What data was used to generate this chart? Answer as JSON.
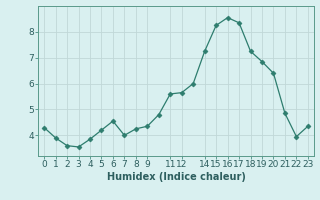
{
  "x": [
    0,
    1,
    2,
    3,
    4,
    5,
    6,
    7,
    8,
    9,
    10,
    11,
    12,
    13,
    14,
    15,
    16,
    17,
    18,
    19,
    20,
    21,
    22,
    23
  ],
  "y": [
    4.3,
    3.9,
    3.6,
    3.55,
    3.85,
    4.2,
    4.55,
    4.0,
    4.25,
    4.35,
    4.8,
    5.6,
    5.65,
    6.0,
    7.25,
    8.25,
    8.55,
    8.35,
    7.25,
    6.85,
    6.4,
    4.85,
    3.95,
    4.35
  ],
  "line_color": "#2e7d6e",
  "marker": "D",
  "marker_size": 2.5,
  "bg_color": "#d9f0f0",
  "grid_color": "#c0d8d8",
  "xlabel": "Humidex (Indice chaleur)",
  "xlim": [
    -0.5,
    23.5
  ],
  "ylim": [
    3.2,
    9.0
  ],
  "yticks": [
    4,
    5,
    6,
    7,
    8
  ],
  "xticks": [
    0,
    1,
    2,
    3,
    4,
    5,
    6,
    7,
    8,
    9,
    11,
    12,
    14,
    15,
    16,
    17,
    18,
    19,
    20,
    21,
    22,
    23
  ],
  "xtick_labels": [
    "0",
    "1",
    "2",
    "3",
    "4",
    "5",
    "6",
    "7",
    "8",
    "9",
    "11",
    "12",
    "14",
    "15",
    "16",
    "17",
    "18",
    "19",
    "20",
    "21",
    "22",
    "23"
  ],
  "xlabel_fontsize": 7,
  "tick_fontsize": 6.5,
  "spine_color": "#5a9a8a",
  "tick_color": "#2e7d6e",
  "label_color": "#2e5f5f"
}
